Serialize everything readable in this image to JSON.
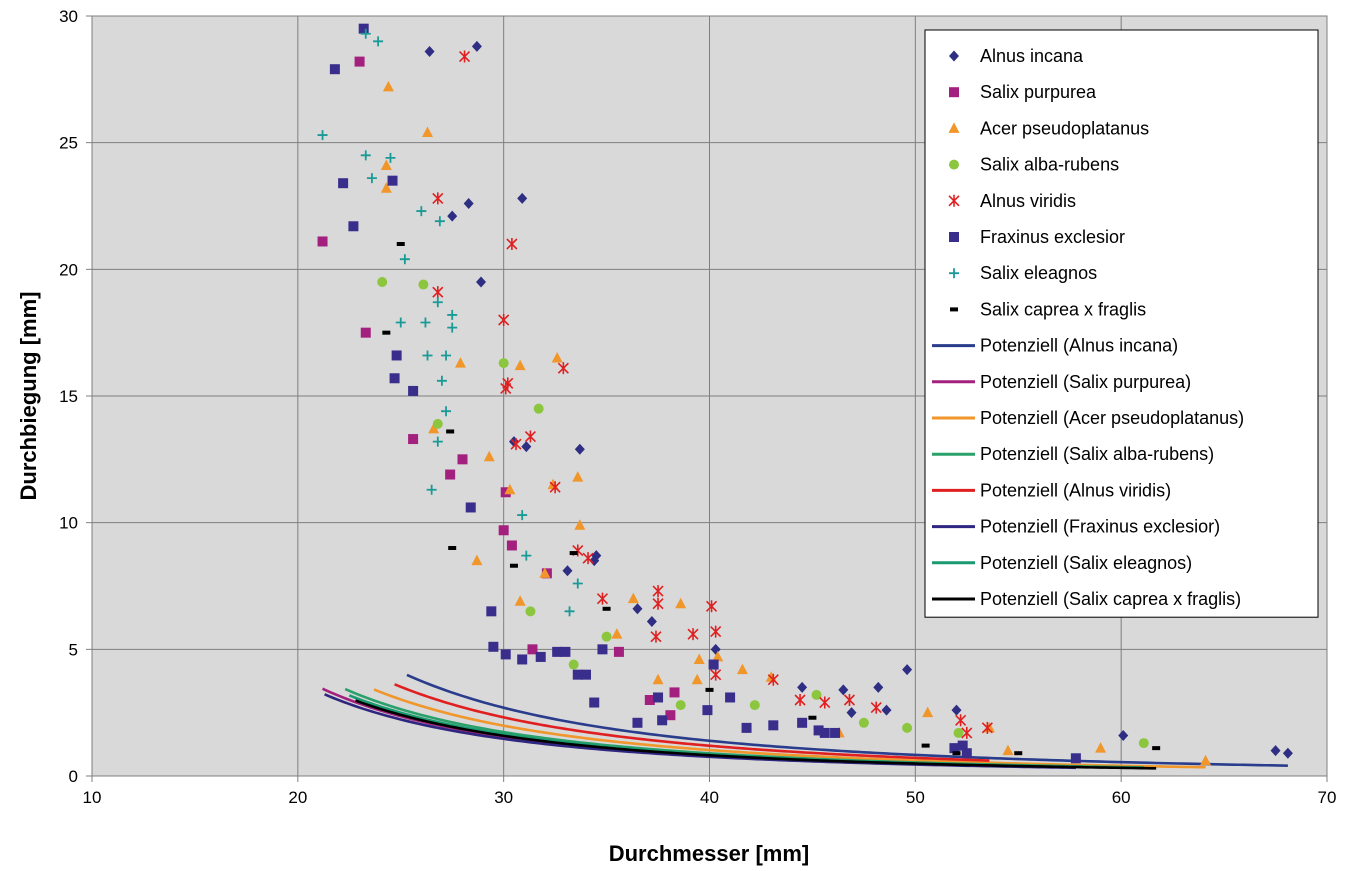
{
  "chart_data": {
    "type": "scatter",
    "title": "",
    "xlabel": "Durchmesser [mm]",
    "ylabel": "Durchbiegung [mm]",
    "xlim": [
      10,
      70
    ],
    "ylim": [
      0,
      30
    ],
    "xticks": [
      10,
      20,
      30,
      40,
      50,
      60,
      70
    ],
    "yticks": [
      0,
      5,
      10,
      15,
      20,
      25,
      30
    ],
    "grid": true,
    "legend_position": "top-right",
    "plot_background": "#d9d9d9",
    "series": [
      {
        "name": "Alnus incana",
        "marker": "diamond",
        "color": "#2e2e82",
        "points": [
          [
            26.4,
            28.6
          ],
          [
            28.7,
            28.8
          ],
          [
            30.9,
            22.8
          ],
          [
            28.3,
            22.6
          ],
          [
            27.5,
            22.1
          ],
          [
            28.9,
            19.5
          ],
          [
            30.5,
            13.2
          ],
          [
            31.1,
            13.0
          ],
          [
            33.7,
            12.9
          ],
          [
            34.4,
            8.5
          ],
          [
            34.5,
            8.7
          ],
          [
            33.1,
            8.1
          ],
          [
            36.5,
            6.6
          ],
          [
            37.2,
            6.1
          ],
          [
            40.3,
            5.0
          ],
          [
            44.5,
            3.5
          ],
          [
            46.5,
            3.4
          ],
          [
            48.2,
            3.5
          ],
          [
            49.6,
            4.2
          ],
          [
            48.6,
            2.6
          ],
          [
            52.0,
            2.6
          ],
          [
            46.9,
            2.5
          ],
          [
            60.1,
            1.6
          ],
          [
            67.5,
            1.0
          ],
          [
            68.1,
            0.9
          ]
        ]
      },
      {
        "name": "Salix purpurea",
        "marker": "square",
        "color": "#a3207e",
        "points": [
          [
            21.2,
            21.1
          ],
          [
            23.0,
            28.2
          ],
          [
            23.3,
            17.5
          ],
          [
            25.6,
            13.3
          ],
          [
            27.4,
            11.9
          ],
          [
            28.0,
            12.5
          ],
          [
            30.0,
            9.7
          ],
          [
            30.1,
            11.2
          ],
          [
            30.4,
            9.1
          ],
          [
            32.1,
            8.0
          ],
          [
            31.4,
            5.0
          ],
          [
            35.6,
            4.9
          ],
          [
            37.1,
            3.0
          ],
          [
            38.1,
            2.4
          ],
          [
            38.3,
            3.3
          ]
        ]
      },
      {
        "name": "Acer pseudoplatanus",
        "marker": "triangle",
        "color": "#f0962a",
        "points": [
          [
            24.4,
            27.2
          ],
          [
            26.3,
            25.4
          ],
          [
            24.3,
            24.1
          ],
          [
            24.3,
            23.2
          ],
          [
            26.6,
            13.7
          ],
          [
            27.9,
            16.3
          ],
          [
            29.3,
            12.6
          ],
          [
            30.8,
            16.2
          ],
          [
            30.3,
            11.3
          ],
          [
            32.6,
            16.5
          ],
          [
            32.4,
            11.5
          ],
          [
            33.6,
            11.8
          ],
          [
            32.0,
            8.0
          ],
          [
            33.7,
            9.9
          ],
          [
            30.8,
            6.9
          ],
          [
            28.7,
            8.5
          ],
          [
            35.5,
            5.6
          ],
          [
            36.3,
            7.0
          ],
          [
            37.5,
            3.8
          ],
          [
            38.6,
            6.8
          ],
          [
            39.4,
            3.8
          ],
          [
            39.5,
            4.6
          ],
          [
            41.6,
            4.2
          ],
          [
            40.4,
            4.7
          ],
          [
            43.0,
            3.9
          ],
          [
            46.3,
            1.7
          ],
          [
            50.6,
            2.5
          ],
          [
            53.6,
            1.9
          ],
          [
            59.0,
            1.1
          ],
          [
            64.1,
            0.6
          ],
          [
            54.5,
            1.0
          ]
        ]
      },
      {
        "name": "Salix alba-rubens",
        "marker": "circle",
        "color": "#8cc63f",
        "points": [
          [
            24.1,
            19.5
          ],
          [
            26.1,
            19.4
          ],
          [
            26.8,
            13.9
          ],
          [
            30.0,
            16.3
          ],
          [
            31.7,
            14.5
          ],
          [
            31.3,
            6.5
          ],
          [
            33.4,
            4.4
          ],
          [
            35.0,
            5.5
          ],
          [
            38.6,
            2.8
          ],
          [
            42.2,
            2.8
          ],
          [
            45.2,
            3.2
          ],
          [
            47.5,
            2.1
          ],
          [
            49.6,
            1.9
          ],
          [
            52.1,
            1.7
          ],
          [
            61.1,
            1.3
          ]
        ]
      },
      {
        "name": "Alnus viridis",
        "marker": "asterisk",
        "color": "#e02020",
        "points": [
          [
            28.1,
            28.4
          ],
          [
            26.8,
            22.8
          ],
          [
            26.8,
            19.1
          ],
          [
            30.4,
            21.0
          ],
          [
            30.0,
            18.0
          ],
          [
            30.2,
            15.5
          ],
          [
            30.1,
            15.3
          ],
          [
            32.9,
            16.1
          ],
          [
            31.3,
            13.4
          ],
          [
            30.6,
            13.1
          ],
          [
            32.5,
            11.4
          ],
          [
            33.6,
            8.9
          ],
          [
            34.1,
            8.6
          ],
          [
            34.8,
            7.0
          ],
          [
            37.5,
            7.3
          ],
          [
            37.5,
            6.8
          ],
          [
            37.4,
            5.5
          ],
          [
            39.2,
            5.6
          ],
          [
            40.1,
            6.7
          ],
          [
            40.3,
            5.7
          ],
          [
            40.3,
            4.0
          ],
          [
            43.1,
            3.8
          ],
          [
            44.4,
            3.0
          ],
          [
            45.6,
            2.9
          ],
          [
            46.8,
            3.0
          ],
          [
            48.1,
            2.7
          ],
          [
            52.5,
            1.7
          ],
          [
            52.2,
            2.2
          ],
          [
            53.5,
            1.9
          ]
        ]
      },
      {
        "name": "Fraxinus exclesior",
        "marker": "square",
        "color": "#3a2e8c",
        "points": [
          [
            23.2,
            29.5
          ],
          [
            21.8,
            27.9
          ],
          [
            22.2,
            23.4
          ],
          [
            22.7,
            21.7
          ],
          [
            24.6,
            23.5
          ],
          [
            24.8,
            16.6
          ],
          [
            24.7,
            15.7
          ],
          [
            25.6,
            15.2
          ],
          [
            28.4,
            10.6
          ],
          [
            29.4,
            6.5
          ],
          [
            29.5,
            5.1
          ],
          [
            30.1,
            4.8
          ],
          [
            30.9,
            4.6
          ],
          [
            31.8,
            4.7
          ],
          [
            32.6,
            4.9
          ],
          [
            33.0,
            4.9
          ],
          [
            33.6,
            4.0
          ],
          [
            34.0,
            4.0
          ],
          [
            34.4,
            2.9
          ],
          [
            34.8,
            5.0
          ],
          [
            36.5,
            2.1
          ],
          [
            37.5,
            3.1
          ],
          [
            37.7,
            2.2
          ],
          [
            39.9,
            2.6
          ],
          [
            40.2,
            4.4
          ],
          [
            41.0,
            3.1
          ],
          [
            41.8,
            1.9
          ],
          [
            43.1,
            2.0
          ],
          [
            44.5,
            2.1
          ],
          [
            45.3,
            1.8
          ],
          [
            45.6,
            1.7
          ],
          [
            46.1,
            1.7
          ],
          [
            51.9,
            1.1
          ],
          [
            52.3,
            1.2
          ],
          [
            52.5,
            0.9
          ],
          [
            57.8,
            0.7
          ]
        ]
      },
      {
        "name": "Salix eleagnos",
        "marker": "plus",
        "color": "#1a9a96",
        "points": [
          [
            21.2,
            25.3
          ],
          [
            23.3,
            29.3
          ],
          [
            23.9,
            29.0
          ],
          [
            23.3,
            24.5
          ],
          [
            23.6,
            23.6
          ],
          [
            24.5,
            24.4
          ],
          [
            25.0,
            17.9
          ],
          [
            25.2,
            20.4
          ],
          [
            26.0,
            22.3
          ],
          [
            26.2,
            17.9
          ],
          [
            26.3,
            16.6
          ],
          [
            26.9,
            21.9
          ],
          [
            26.8,
            18.7
          ],
          [
            27.2,
            16.6
          ],
          [
            27.5,
            18.2
          ],
          [
            27.5,
            17.7
          ],
          [
            27.2,
            14.4
          ],
          [
            26.5,
            11.3
          ],
          [
            26.8,
            13.2
          ],
          [
            27.0,
            15.6
          ],
          [
            30.9,
            10.3
          ],
          [
            31.1,
            8.7
          ],
          [
            33.2,
            6.5
          ],
          [
            33.6,
            7.6
          ]
        ]
      },
      {
        "name": "Salix caprea x fraglis",
        "marker": "dash",
        "color": "#000000",
        "points": [
          [
            24.3,
            17.5
          ],
          [
            25.0,
            21.0
          ],
          [
            27.4,
            13.6
          ],
          [
            27.5,
            9.0
          ],
          [
            30.5,
            8.3
          ],
          [
            33.4,
            8.8
          ],
          [
            35.0,
            6.6
          ],
          [
            40.0,
            3.4
          ],
          [
            45.0,
            2.3
          ],
          [
            50.5,
            1.2
          ],
          [
            52.0,
            0.9
          ],
          [
            55.0,
            0.9
          ],
          [
            61.7,
            1.1
          ]
        ]
      }
    ],
    "trendlines": [
      {
        "name": "Potenziell (Alnus incana)",
        "color": "#2a3c8c",
        "a": 6730,
        "b": -2.3,
        "x_range": [
          25.3,
          68.1
        ]
      },
      {
        "name": "Potenziell (Salix purpurea)",
        "color": "#a3207e",
        "a": 3870,
        "b": -2.3,
        "x_range": [
          21.2,
          52.0
        ]
      },
      {
        "name": "Potenziell (Acer pseudoplatanus)",
        "color": "#f0962a",
        "a": 4960,
        "b": -2.3,
        "x_range": [
          23.7,
          64.1
        ]
      },
      {
        "name": "Potenziell (Salix alba-rubens)",
        "color": "#2aa06a",
        "a": 4330,
        "b": -2.3,
        "x_range": [
          22.3,
          61.1
        ]
      },
      {
        "name": "Potenziell (Alnus viridis)",
        "color": "#e02020",
        "a": 5780,
        "b": -2.3,
        "x_range": [
          24.7,
          53.6
        ]
      },
      {
        "name": "Potenziell (Fraxinus exclesior)",
        "color": "#2e2680",
        "a": 3660,
        "b": -2.3,
        "x_range": [
          21.3,
          57.8
        ]
      },
      {
        "name": "Potenziell (Salix eleagnos)",
        "color": "#1a9a70",
        "a": 4100,
        "b": -2.3,
        "x_range": [
          22.5,
          55.0
        ]
      },
      {
        "name": "Potenziell (Salix caprea x fraglis)",
        "color": "#000000",
        "a": 3960,
        "b": -2.3,
        "x_range": [
          22.8,
          61.7
        ]
      }
    ]
  }
}
